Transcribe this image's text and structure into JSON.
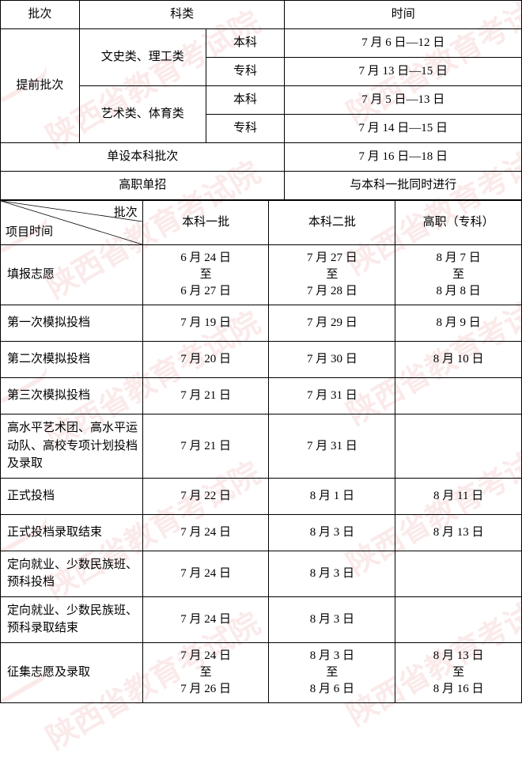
{
  "colors": {
    "border": "#000000",
    "watermark": "rgba(220,80,80,0.12)",
    "background": "#ffffff",
    "text": "#000000"
  },
  "typography": {
    "font_family": "SimSun",
    "font_size_pt": 11,
    "watermark_font_size_pt": 28
  },
  "watermark_text": "陕西省教育考试院",
  "table1": {
    "type": "table",
    "headers": {
      "batch": "批次",
      "category": "科类",
      "time": "时间"
    },
    "rows": [
      {
        "batch": "提前批次",
        "category": "文史类、理工类",
        "level": "本科",
        "time": "7 月 6 日—12 日"
      },
      {
        "level": "专科",
        "time": "7 月 13 日—15 日"
      },
      {
        "category": "艺术类、体育类",
        "level": "本科",
        "time": "7 月 5 日—13 日"
      },
      {
        "level": "专科",
        "time": "7 月 14 日—15 日"
      },
      {
        "merged_label": "单设本科批次",
        "time": "7 月 16 日—18 日"
      },
      {
        "merged_label": "高职单招",
        "time": "与本科一批同时进行"
      }
    ]
  },
  "table2": {
    "type": "table",
    "diagonal_header": {
      "top": "批次",
      "mid": "时间",
      "bottom": "项目"
    },
    "columns": [
      "本科一批",
      "本科二批",
      "高职（专科）"
    ],
    "rows": [
      {
        "item": "填报志愿",
        "c1": "6 月 24 日\n至\n6 月 27 日",
        "c2": "7 月 27 日\n至\n7 月 28 日",
        "c3": "8 月 7 日\n至\n8 月 8 日"
      },
      {
        "item": "第一次模拟投档",
        "c1": "7 月 19 日",
        "c2": "7 月 29 日",
        "c3": "8 月 9 日"
      },
      {
        "item": "第二次模拟投档",
        "c1": "7 月 20 日",
        "c2": "7 月 30 日",
        "c3": "8 月 10 日"
      },
      {
        "item": "第三次模拟投档",
        "c1": "7 月 21 日",
        "c2": "7 月 31 日",
        "c3": ""
      },
      {
        "item": "高水平艺术团、高水平运动队、高校专项计划投档及录取",
        "c1": "7 月 21 日",
        "c2": "7 月 31 日",
        "c3": ""
      },
      {
        "item": "正式投档",
        "c1": "7 月 22 日",
        "c2": "8 月 1 日",
        "c3": "8 月 11 日"
      },
      {
        "item": "正式投档录取结束",
        "c1": "7 月 24 日",
        "c2": "8 月 3 日",
        "c3": "8 月 13 日"
      },
      {
        "item": "定向就业、少数民族班、预科投档",
        "c1": "7 月 24 日",
        "c2": "8 月 3 日",
        "c3": ""
      },
      {
        "item": "定向就业、少数民族班、预科录取结束",
        "c1": "7 月 24 日",
        "c2": "8 月 3 日",
        "c3": ""
      },
      {
        "item": "征集志愿及录取",
        "c1": "7 月 24 日\n至\n7 月 26 日",
        "c2": "8 月 3 日\n至\n8 月 6 日",
        "c3": "8 月 13 日\n至\n8 月 16 日"
      }
    ]
  }
}
